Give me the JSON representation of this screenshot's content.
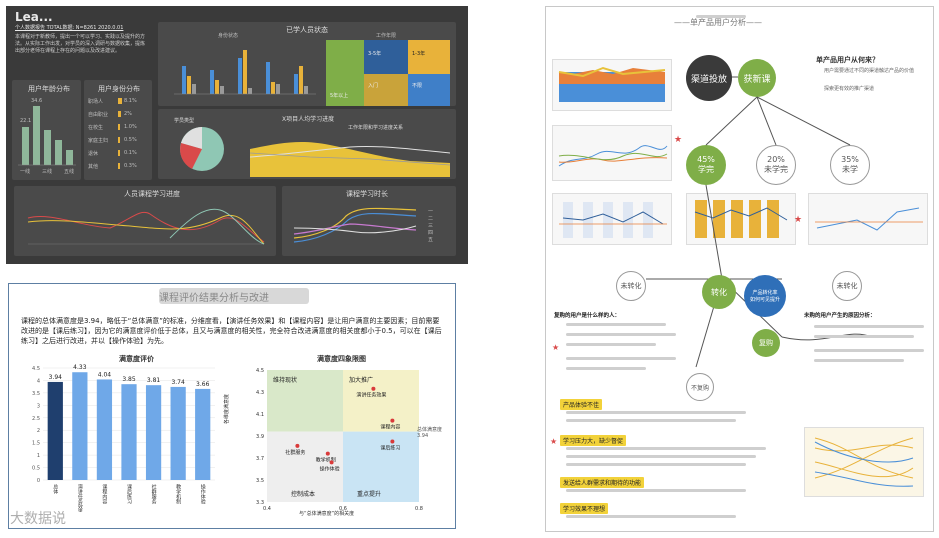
{
  "dashboard": {
    "title": "Lea...",
    "subtitle": "个人数据报告 TOTAL数据: N=8261 2020.0.01",
    "intro": "本课程对于新教师，提出一个可以学习、实践以及提升的方法。从实际工作出发，对学员的深入调研与数据收集，提炼出部分老师在课程上存在的问题以及改进建议。",
    "age_title": "用户年龄分布",
    "age_values": [
      22.1,
      34.6,
      20.4,
      14.8,
      9.1
    ],
    "age_labels": [
      "一线",
      "二线",
      "三线",
      "四线",
      "五线"
    ],
    "job_title": "用户身份分布",
    "job_items": [
      {
        "label": "职场人",
        "value": "8.1%"
      },
      {
        "label": "自由职业",
        "value": "2%"
      },
      {
        "label": "在校生",
        "value": "1.0%"
      },
      {
        "label": "家庭主妇",
        "value": "0.5%"
      },
      {
        "label": "退休",
        "value": "0.1%"
      },
      {
        "label": "其他",
        "value": "0.3%"
      }
    ],
    "top_title": "已学人员状态",
    "left_sub": "身份状态",
    "right_sub": "工作年限",
    "treemap_labels": [
      "5年以上",
      "3-5年",
      "1-3年",
      "入门",
      "不限"
    ],
    "pie_title": "学员类型",
    "area_title": "X项目人均学习进度",
    "area_sub": "工作年限和学习进度关系",
    "line_title": "人员课程学习进度",
    "line2_title": "课程学习时长",
    "line2_legend": [
      "一",
      "二",
      "三",
      "四",
      "五"
    ]
  },
  "report": {
    "title": "课程评价结果分析与改进",
    "body": "课程的总体满意度是3.94，略低于“总体满意”的标准，分维度看，【演讲任务效果】和【课程内容】是让用户满意的主要因素；目前需要改进的是【课后练习】，因为它的满意度评价低于总体，且又与满意度的相关性，完全符合改进满意度的相关度都小于0.5，可以在【课后练习】之后进行改进，并以【操作体验】为先。",
    "bar_chart_title": "满意度评价",
    "quad_title": "满意度四象限图",
    "quad_xlabel": "与“总体满意度”的相关度",
    "quad_ylabel": "各维度满意度",
    "quad_note": "总体满意度 3.94",
    "quad_labels": [
      "维持现状",
      "加大推广",
      "控制成本",
      "重点提升"
    ],
    "watermark": "大数据说"
  },
  "chart_data": [
    {
      "type": "bar",
      "title": "满意度评价",
      "categories": [
        "总体",
        "演讲任务效果",
        "课程内容",
        "课后练习",
        "社群服务",
        "教学机制",
        "操作体验"
      ],
      "values": [
        3.94,
        4.33,
        4.04,
        3.85,
        3.81,
        3.74,
        3.66
      ],
      "ylim": [
        0,
        4.5
      ]
    },
    {
      "type": "scatter",
      "title": "满意度四象限图",
      "xlabel": "与“总体满意度”的相关度",
      "ylabel": "各维度满意度",
      "xlim": [
        0.4,
        0.8
      ],
      "ylim": [
        3.3,
        4.5
      ],
      "points": [
        {
          "label": "演讲任务效果",
          "x": 0.68,
          "y": 4.33
        },
        {
          "label": "课程内容",
          "x": 0.73,
          "y": 4.04
        },
        {
          "label": "课后练习",
          "x": 0.73,
          "y": 3.85
        },
        {
          "label": "社群服务",
          "x": 0.48,
          "y": 3.81
        },
        {
          "label": "教学机制",
          "x": 0.56,
          "y": 3.74
        },
        {
          "label": "操作体验",
          "x": 0.57,
          "y": 3.66
        }
      ]
    }
  ],
  "doc": {
    "title": "——单产品用户分析——",
    "bubbles": [
      "渠道投放",
      "获新课",
      "45%\n学完",
      "20%\n未学完",
      "35%\n未学",
      "未转化",
      "转化",
      "未转化",
      "复购",
      "不复购"
    ],
    "center_blue": "产品转化率\n如何可见提升",
    "right_heading": "单产品用户从何来？",
    "right_lines": [
      "用户需要通过不同的渠道触达产品的价值",
      "探索更有效的推广渠道"
    ],
    "section1": "复购的用户是什么样的人：",
    "section2": "未购的用户产生的原因分析：",
    "highlights": [
      "产品体验不佳",
      "学习压力大，缺少督促",
      "发送给人群需求和期待的功能",
      "学习效果不理想"
    ]
  }
}
